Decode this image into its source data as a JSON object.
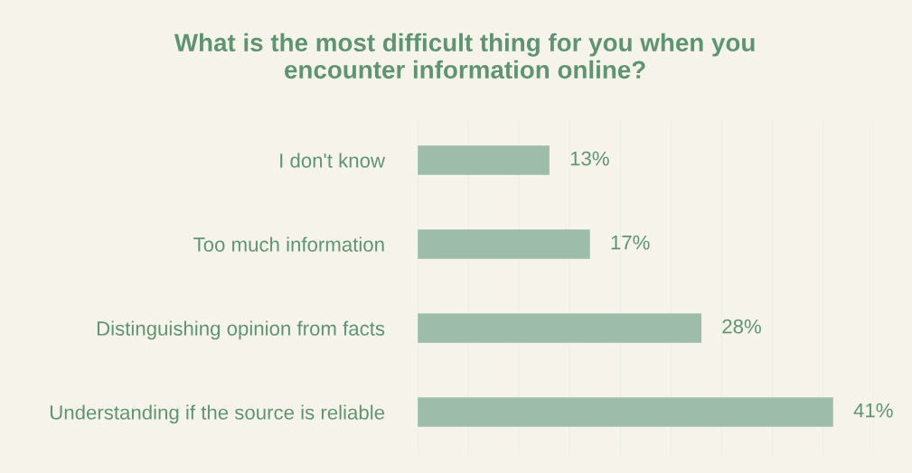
{
  "chart_data": {
    "type": "bar",
    "orientation": "horizontal",
    "title": "What is the most difficult thing for you when you\nencounter information online?",
    "categories": [
      "I don't know",
      "Too much information",
      "Distinguishing opinion from facts",
      "Understanding if the source is reliable"
    ],
    "values": [
      13,
      17,
      28,
      41
    ],
    "value_labels": [
      "13%",
      "17%",
      "28%",
      "41%"
    ],
    "color": "#9dbcaa",
    "xlim": [
      0,
      45
    ],
    "xticks": [
      {
        "value": 0,
        "label": null
      },
      {
        "value": 5,
        "label": null
      },
      {
        "value": 10,
        "label": null
      },
      {
        "value": 15,
        "label": null
      },
      {
        "value": 20,
        "label": null
      },
      {
        "value": 25,
        "label": null
      },
      {
        "value": 30,
        "label": null
      },
      {
        "value": 35,
        "label": null
      },
      {
        "value": 40,
        "label": null
      },
      {
        "value": 45,
        "label": null
      }
    ],
    "grid": "x",
    "tick_labels": "y"
  }
}
